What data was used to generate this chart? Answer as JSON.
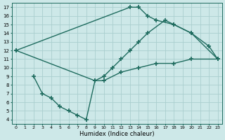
{
  "xlabel": "Humidex (Indice chaleur)",
  "xlim": [
    -0.5,
    23.5
  ],
  "ylim": [
    3.5,
    17.5
  ],
  "xticks": [
    0,
    1,
    2,
    3,
    4,
    5,
    6,
    7,
    8,
    9,
    10,
    11,
    12,
    13,
    14,
    15,
    16,
    17,
    18,
    19,
    20,
    21,
    22,
    23
  ],
  "yticks": [
    4,
    5,
    6,
    7,
    8,
    9,
    10,
    11,
    12,
    13,
    14,
    15,
    16,
    17
  ],
  "bg_color": "#cde8e8",
  "grid_color": "#aacece",
  "line_color": "#1e6b5e",
  "line_width": 1.0,
  "marker": "+",
  "markersize": 4,
  "markeredgewidth": 1.2,
  "series": [
    {
      "x": [
        0,
        13,
        14,
        15,
        16,
        18,
        20,
        22,
        23
      ],
      "y": [
        12,
        17,
        17,
        16,
        15.5,
        15,
        14,
        12.5,
        11
      ]
    },
    {
      "x": [
        0,
        9,
        10,
        11,
        12,
        13,
        14,
        15,
        17,
        18,
        20,
        23
      ],
      "y": [
        12,
        8.5,
        9,
        10,
        11,
        12,
        13,
        14,
        15.5,
        15,
        14,
        11
      ]
    },
    {
      "x": [
        2,
        3,
        4,
        5,
        6,
        7,
        8,
        9,
        10,
        12,
        14,
        16,
        18,
        20,
        23
      ],
      "y": [
        9,
        7,
        6.5,
        5.5,
        5,
        4.5,
        4,
        8.5,
        8.5,
        9.5,
        10,
        10.5,
        10.5,
        11,
        11
      ]
    }
  ]
}
